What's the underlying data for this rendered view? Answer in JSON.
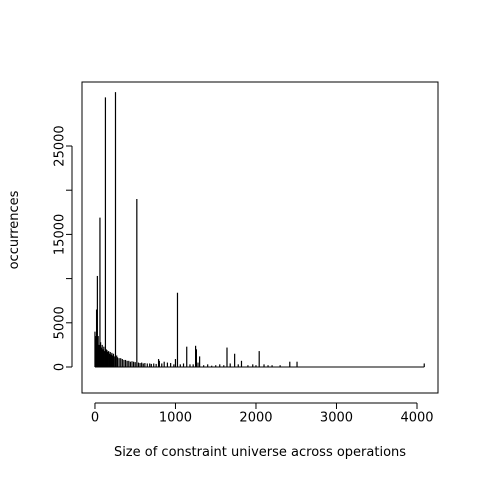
{
  "chart_data": {
    "type": "histogram-lines",
    "xlabel": "Size of constraint universe across operations",
    "ylabel": "occurrences",
    "color": "#000000",
    "xlim": [
      -161,
      4261
    ],
    "ylim": [
      -2941,
      32240
    ],
    "xticks": [
      0,
      1000,
      2000,
      3000,
      4000
    ],
    "yticks": [
      0,
      5000,
      {
        "value": 10000,
        "label": null
      },
      15000,
      {
        "value": 20000,
        "label": null
      },
      25000
    ],
    "x": [
      0,
      5,
      10,
      15,
      20,
      25,
      30,
      40,
      50,
      62,
      70,
      80,
      90,
      100,
      110,
      120,
      130,
      140,
      150,
      160,
      170,
      180,
      190,
      200,
      210,
      220,
      230,
      240,
      255,
      270,
      280,
      300,
      320,
      340,
      360,
      380,
      400,
      420,
      440,
      460,
      480,
      500,
      520,
      540,
      560,
      580,
      600,
      620,
      650,
      680,
      700,
      730,
      760,
      790,
      800,
      830,
      860,
      900,
      940,
      980,
      1000,
      1025,
      1060,
      1100,
      1140,
      1180,
      1220,
      1250,
      1260,
      1280,
      1300,
      1350,
      1400,
      1450,
      1500,
      1550,
      1600,
      1640,
      1680,
      1735,
      1780,
      1820,
      1900,
      1960,
      2000,
      2040,
      2100,
      2150,
      2200,
      2300,
      2420,
      2510,
      4090
    ],
    "values": [
      4000,
      3500,
      3000,
      3200,
      6500,
      3000,
      10300,
      3500,
      2500,
      16900,
      2800,
      2200,
      2500,
      2000,
      2300,
      1800,
      30500,
      2000,
      1900,
      1700,
      1800,
      1500,
      1700,
      1400,
      1600,
      1300,
      1500,
      1200,
      31100,
      1300,
      1100,
      1000,
      1000,
      900,
      800,
      800,
      700,
      700,
      600,
      650,
      600,
      550,
      19000,
      500,
      450,
      500,
      400,
      450,
      400,
      400,
      350,
      400,
      350,
      900,
      700,
      400,
      600,
      500,
      450,
      300,
      900,
      8400,
      300,
      400,
      2300,
      300,
      300,
      2400,
      2000,
      500,
      1200,
      200,
      300,
      150,
      200,
      300,
      200,
      2200,
      400,
      1500,
      300,
      700,
      200,
      300,
      200,
      1800,
      300,
      200,
      200,
      200,
      600,
      600,
      400
    ]
  }
}
